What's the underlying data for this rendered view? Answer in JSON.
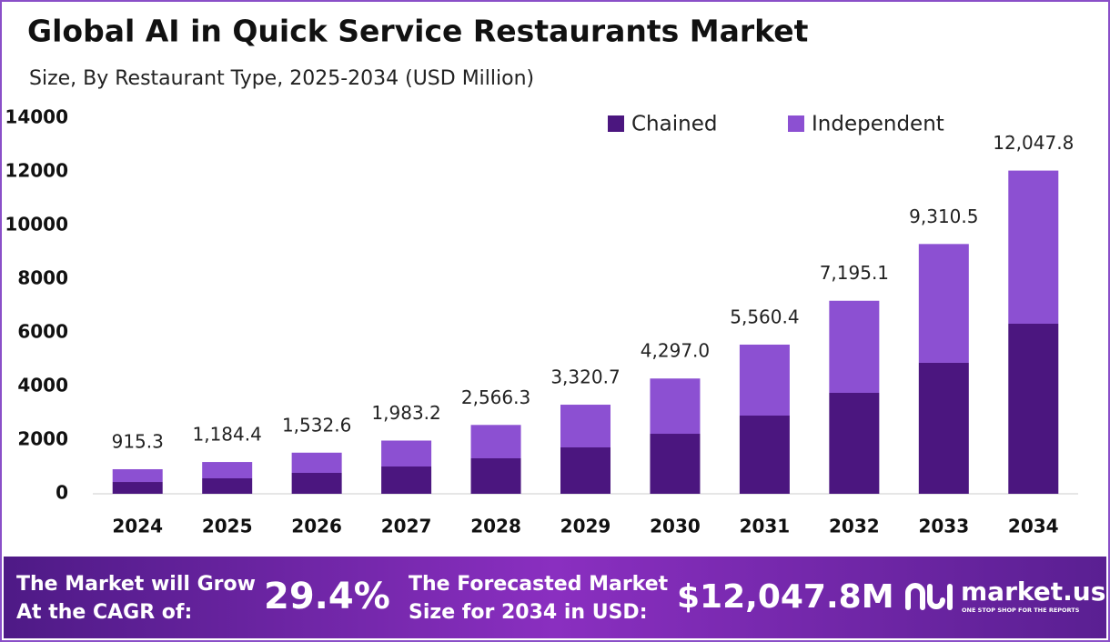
{
  "chart_data": {
    "type": "stacked-bar",
    "title": "Global AI in Quick Service Restaurants Market",
    "subtitle": "Size, By Restaurant Type, 2025-2034 (USD Million)",
    "categories": [
      "2024",
      "2025",
      "2026",
      "2027",
      "2028",
      "2029",
      "2030",
      "2031",
      "2032",
      "2033",
      "2034"
    ],
    "series": [
      {
        "name": "Chained",
        "color": "#4b167f",
        "values": [
          440,
          576,
          780,
          1017,
          1322,
          1729,
          2237,
          2915,
          3763,
          4882,
          6339
        ]
      },
      {
        "name": "Independent",
        "color": "#8c50d2",
        "values": [
          475.3,
          608.4,
          752.6,
          966.2,
          1244.3,
          1591.7,
          2060.0,
          2645.4,
          3432.1,
          4428.5,
          5708.8
        ]
      }
    ],
    "totals": [
      915.3,
      1184.4,
      1532.6,
      1983.2,
      2566.3,
      3320.7,
      4297.0,
      5560.4,
      7195.1,
      9310.5,
      12047.8
    ],
    "total_labels": [
      "915.3",
      "1,184.4",
      "1,532.6",
      "1,983.2",
      "2,566.3",
      "3,320.7",
      "4,297.0",
      "5,560.4",
      "7,195.1",
      "9,310.5",
      "12,047.8"
    ],
    "ylim": [
      0,
      14000
    ],
    "yticks": [
      0,
      2000,
      4000,
      6000,
      8000,
      10000,
      12000,
      14000
    ],
    "legend": "top-right"
  },
  "footer": {
    "cagr_text": [
      "The Market will Grow",
      "At the CAGR of:"
    ],
    "cagr_value": "29.4%",
    "forecast_text": [
      "The Forecasted Market",
      "Size for 2034 in USD:"
    ],
    "forecast_value": "$12,047.8M",
    "brand": "market.us",
    "tagline": "ONE STOP SHOP FOR THE REPORTS"
  }
}
